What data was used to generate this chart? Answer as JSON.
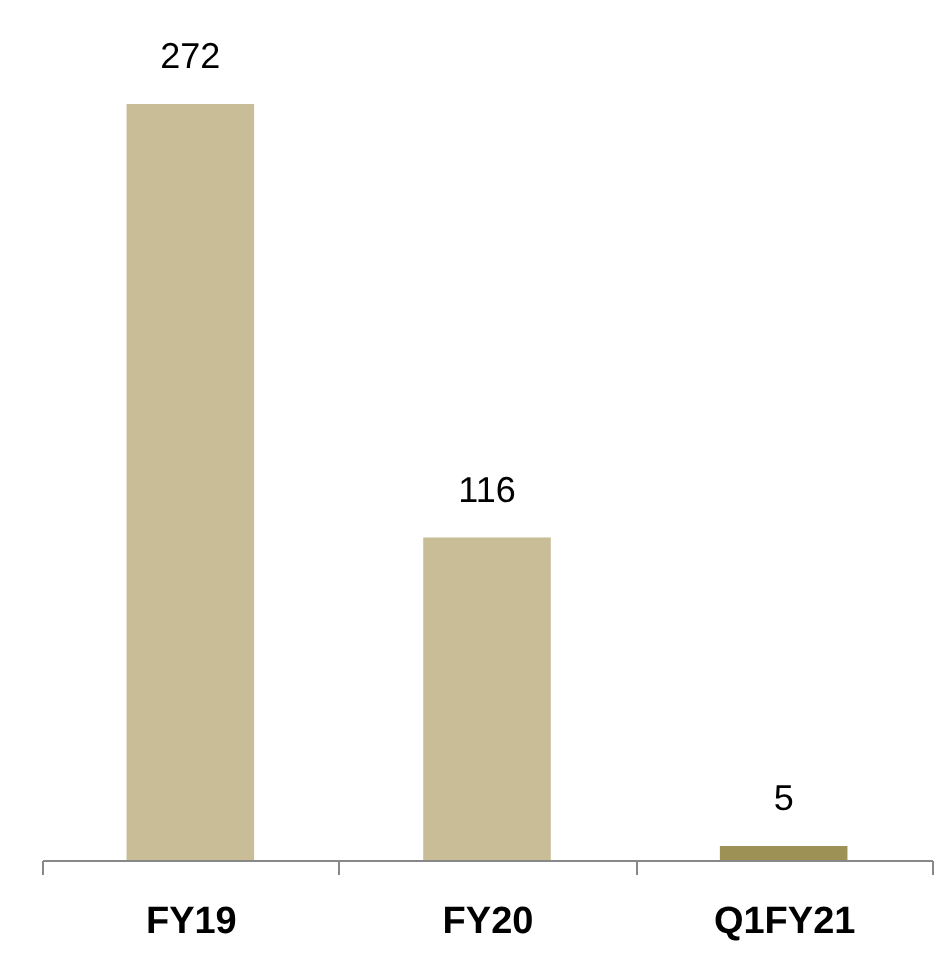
{
  "chart_data": {
    "type": "bar",
    "categories": [
      "FY19",
      "FY20",
      "Q1FY21"
    ],
    "values": [
      272,
      116,
      5
    ],
    "colors": [
      "#c8bd96",
      "#c8bd96",
      "#9d9155"
    ],
    "data_labels": true,
    "tick_labels": "x"
  }
}
